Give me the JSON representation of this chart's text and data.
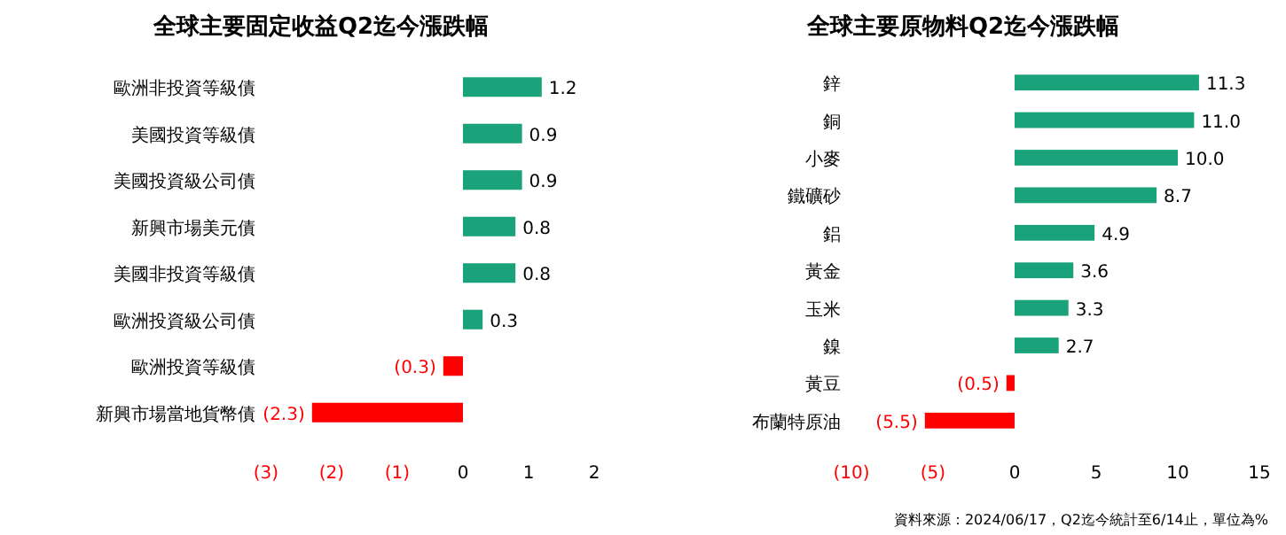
{
  "chart_data": [
    {
      "type": "bar",
      "orientation": "horizontal",
      "title": "全球主要固定收益Q2迄今漲跌幅",
      "categories": [
        "歐洲非投資等級債",
        "美國投資等級債",
        "美國投資級公司債",
        "新興市場美元債",
        "美國非投資等級債",
        "歐洲投資級公司債",
        "歐洲投資等級債",
        "新興市場當地貨幣債"
      ],
      "values": [
        1.2,
        0.9,
        0.9,
        0.8,
        0.8,
        0.3,
        -0.3,
        -2.3
      ],
      "value_labels": [
        "1.2",
        "0.9",
        "0.9",
        "0.8",
        "0.8",
        "0.3",
        "(0.3)",
        "(2.3)"
      ],
      "colors": [
        "#1aa37a",
        "#1aa37a",
        "#1aa37a",
        "#1aa37a",
        "#1aa37a",
        "#1aa37a",
        "#ff0000",
        "#ff0000"
      ],
      "xlim": [
        -3,
        2
      ],
      "xticks": [
        {
          "value": -3,
          "label": "(3)"
        },
        {
          "value": -2,
          "label": "(2)"
        },
        {
          "value": -1,
          "label": "(1)"
        },
        0,
        1,
        2
      ],
      "grid": false
    },
    {
      "type": "bar",
      "orientation": "horizontal",
      "title": "全球主要原物料Q2迄今漲跌幅",
      "categories": [
        "鋅",
        "銅",
        "小麥",
        "鐵礦砂",
        "鋁",
        "黃金",
        "玉米",
        "鎳",
        "黃豆",
        "布蘭特原油"
      ],
      "values": [
        11.3,
        11.0,
        10.0,
        8.7,
        4.9,
        3.6,
        3.3,
        2.7,
        -0.5,
        -5.5
      ],
      "value_labels": [
        "11.3",
        "11.0",
        "10.0",
        "8.7",
        "4.9",
        "3.6",
        "3.3",
        "2.7",
        "(0.5)",
        "(5.5)"
      ],
      "colors": [
        "#1aa37a",
        "#1aa37a",
        "#1aa37a",
        "#1aa37a",
        "#1aa37a",
        "#1aa37a",
        "#1aa37a",
        "#1aa37a",
        "#ff0000",
        "#ff0000"
      ],
      "xlim": [
        -10,
        15
      ],
      "xticks": [
        {
          "value": -10,
          "label": "(10)"
        },
        {
          "value": -5,
          "label": "(5)"
        },
        0,
        5,
        10,
        15
      ],
      "grid": false,
      "annotations": [
        "資料來源：2024/06/17，Q2迄今統計至6/14止，單位為%"
      ]
    }
  ]
}
